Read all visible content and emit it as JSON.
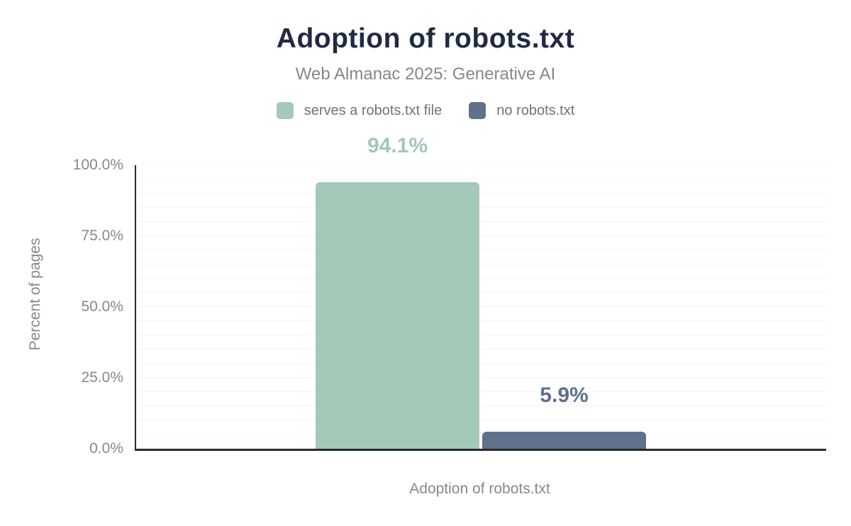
{
  "header": {
    "title": "Adoption of robots.txt",
    "subtitle": "Web Almanac 2025: Generative AI"
  },
  "legend": [
    {
      "label": "serves a robots.txt file",
      "color": "#a5c9b9"
    },
    {
      "label": "no robots.txt",
      "color": "#5f718c"
    }
  ],
  "chart_data": {
    "type": "bar",
    "title": "Adoption of robots.txt",
    "subtitle": "Web Almanac 2025: Generative AI",
    "categories": [
      "Adoption of robots.txt"
    ],
    "series": [
      {
        "name": "serves a robots.txt file",
        "values": [
          94.1
        ],
        "value_labels": [
          "94.1%"
        ],
        "color": "#a5c9b9",
        "label_color": "#a3c8b8"
      },
      {
        "name": "no robots.txt",
        "values": [
          5.9
        ],
        "value_labels": [
          "5.9%"
        ],
        "color": "#5f718c",
        "label_color": "#5d7090"
      }
    ],
    "xlabel": "Adoption of robots.txt",
    "ylabel": "Percent of pages",
    "ylim": [
      0,
      100
    ],
    "yticks": [
      {
        "value": 0,
        "label": "0.0%"
      },
      {
        "value": 25,
        "label": "25.0%"
      },
      {
        "value": 50,
        "label": "50.0%"
      },
      {
        "value": 75,
        "label": "75.0%"
      },
      {
        "value": 100,
        "label": "100.0%"
      }
    ],
    "grid": {
      "horizontal": true,
      "minor_step_percent": 5
    },
    "legend_position": "top"
  },
  "colors": {
    "title_text": "#1f2a44",
    "subtitle_text": "#84888c",
    "axis_line": "#2a2a2a",
    "gridline": "#f4f4f4",
    "tick_text": "#85898d",
    "series_green": "#a5c9b9",
    "series_slate": "#5f718c"
  }
}
